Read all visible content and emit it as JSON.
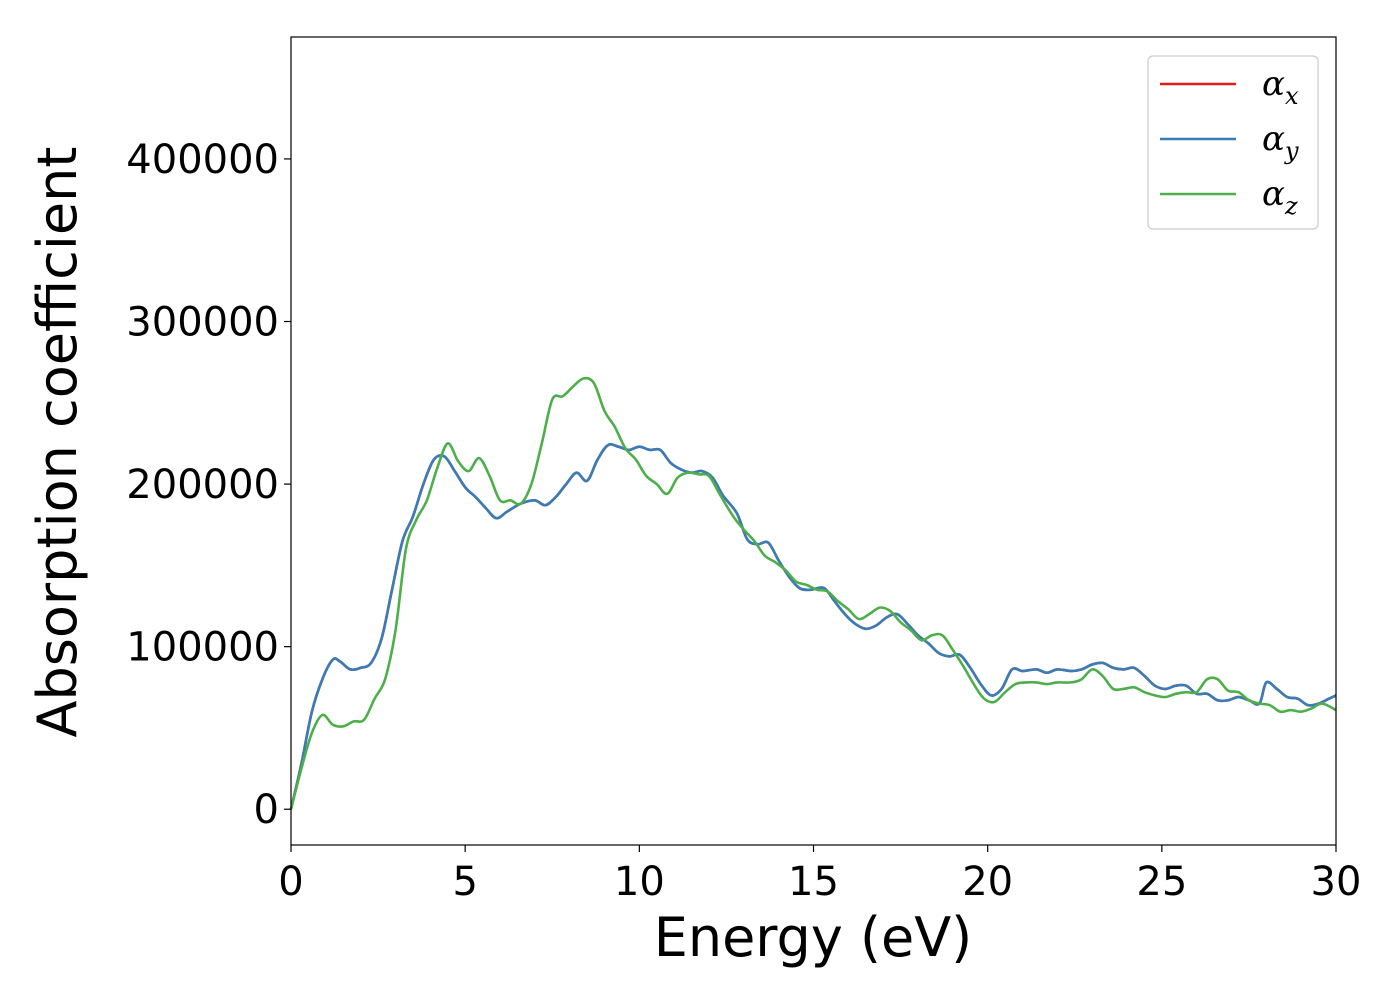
{
  "chart_data": {
    "type": "line",
    "xlabel": "Energy (eV)",
    "ylabel": "Absorption coefficient",
    "xlim": [
      0,
      30
    ],
    "ylim": [
      -22000,
      475000
    ],
    "xticks": [
      0,
      5,
      10,
      15,
      20,
      25,
      30
    ],
    "yticks": [
      0,
      100000,
      200000,
      300000,
      400000
    ],
    "grid": false,
    "legend_position": "top-right",
    "series": [
      {
        "name": "α",
        "subscript": "x",
        "color": "#e41a1c",
        "x": [
          0,
          0.3,
          0.6,
          0.9,
          1.2,
          1.4,
          1.7,
          2.0,
          2.3,
          2.6,
          2.9,
          3.2,
          3.5,
          3.8,
          4.1,
          4.4,
          4.7,
          5.0,
          5.3,
          5.6,
          5.9,
          6.2,
          6.6,
          7.0,
          7.3,
          7.6,
          7.9,
          8.2,
          8.5,
          8.8,
          9.1,
          9.4,
          9.7,
          10.0,
          10.3,
          10.6,
          10.9,
          11.2,
          11.5,
          11.8,
          12.1,
          12.4,
          12.8,
          13.1,
          13.4,
          13.7,
          14.0,
          14.3,
          14.6,
          14.9,
          15.3,
          15.6,
          15.9,
          16.2,
          16.5,
          16.8,
          17.1,
          17.4,
          17.7,
          18.0,
          18.3,
          18.6,
          18.9,
          19.2,
          19.5,
          19.8,
          20.1,
          20.4,
          20.7,
          21.0,
          21.4,
          21.7,
          22.0,
          22.4,
          22.7,
          23.0,
          23.3,
          23.6,
          23.9,
          24.2,
          24.5,
          24.8,
          25.1,
          25.4,
          25.7,
          26.0,
          26.3,
          26.6,
          26.9,
          27.2,
          27.5,
          27.8,
          28.0,
          28.3,
          28.6,
          28.9,
          29.2,
          29.5,
          29.8,
          30.0
        ],
        "y": [
          0,
          28000,
          60000,
          80000,
          92000,
          91000,
          86000,
          87000,
          90000,
          105000,
          135000,
          165000,
          180000,
          200000,
          215000,
          217000,
          208000,
          198000,
          192000,
          185000,
          179000,
          183000,
          188000,
          190000,
          187000,
          192000,
          200000,
          207000,
          202000,
          215000,
          224000,
          223000,
          221000,
          223000,
          221000,
          221000,
          213000,
          209000,
          207000,
          208000,
          204000,
          193000,
          182000,
          166000,
          163000,
          164000,
          153000,
          143000,
          136000,
          135000,
          136000,
          128000,
          120000,
          114000,
          111000,
          113000,
          118000,
          120000,
          114000,
          107000,
          102000,
          96000,
          94000,
          95000,
          87000,
          77000,
          70000,
          74000,
          86000,
          85000,
          86000,
          84000,
          86000,
          85000,
          86000,
          89000,
          90000,
          87000,
          86000,
          87000,
          82000,
          76000,
          74000,
          76000,
          76000,
          71000,
          71000,
          67000,
          67000,
          69000,
          67000,
          65000,
          78000,
          74000,
          69000,
          68000,
          64000,
          65000,
          68000,
          70000
        ]
      },
      {
        "name": "α",
        "subscript": "y",
        "color": "#377eb8",
        "x": [
          0,
          0.3,
          0.6,
          0.9,
          1.2,
          1.4,
          1.7,
          2.0,
          2.3,
          2.6,
          2.9,
          3.2,
          3.5,
          3.8,
          4.1,
          4.4,
          4.7,
          5.0,
          5.3,
          5.6,
          5.9,
          6.2,
          6.6,
          7.0,
          7.3,
          7.6,
          7.9,
          8.2,
          8.5,
          8.8,
          9.1,
          9.4,
          9.7,
          10.0,
          10.3,
          10.6,
          10.9,
          11.2,
          11.5,
          11.8,
          12.1,
          12.4,
          12.8,
          13.1,
          13.4,
          13.7,
          14.0,
          14.3,
          14.6,
          14.9,
          15.3,
          15.6,
          15.9,
          16.2,
          16.5,
          16.8,
          17.1,
          17.4,
          17.7,
          18.0,
          18.3,
          18.6,
          18.9,
          19.2,
          19.5,
          19.8,
          20.1,
          20.4,
          20.7,
          21.0,
          21.4,
          21.7,
          22.0,
          22.4,
          22.7,
          23.0,
          23.3,
          23.6,
          23.9,
          24.2,
          24.5,
          24.8,
          25.1,
          25.4,
          25.7,
          26.0,
          26.3,
          26.6,
          26.9,
          27.2,
          27.5,
          27.8,
          28.0,
          28.3,
          28.6,
          28.9,
          29.2,
          29.5,
          29.8,
          30.0
        ],
        "y": [
          0,
          28000,
          60000,
          80000,
          92000,
          91000,
          86000,
          87000,
          90000,
          105000,
          135000,
          165000,
          180000,
          200000,
          215000,
          217000,
          208000,
          198000,
          192000,
          185000,
          179000,
          183000,
          188000,
          190000,
          187000,
          192000,
          200000,
          207000,
          202000,
          215000,
          224000,
          223000,
          221000,
          223000,
          221000,
          221000,
          213000,
          209000,
          207000,
          208000,
          204000,
          193000,
          182000,
          166000,
          163000,
          164000,
          153000,
          143000,
          136000,
          135000,
          136000,
          128000,
          120000,
          114000,
          111000,
          113000,
          118000,
          120000,
          114000,
          107000,
          102000,
          96000,
          94000,
          95000,
          87000,
          77000,
          70000,
          74000,
          86000,
          85000,
          86000,
          84000,
          86000,
          85000,
          86000,
          89000,
          90000,
          87000,
          86000,
          87000,
          82000,
          76000,
          74000,
          76000,
          76000,
          71000,
          71000,
          67000,
          67000,
          69000,
          67000,
          65000,
          78000,
          74000,
          69000,
          68000,
          64000,
          65000,
          68000,
          70000
        ]
      },
      {
        "name": "α",
        "subscript": "z",
        "color": "#4daf4a",
        "x": [
          0,
          0.3,
          0.6,
          0.9,
          1.2,
          1.5,
          1.8,
          2.1,
          2.4,
          2.7,
          3.0,
          3.3,
          3.6,
          3.9,
          4.2,
          4.5,
          4.8,
          5.1,
          5.4,
          5.7,
          6.0,
          6.3,
          6.6,
          6.9,
          7.2,
          7.5,
          7.8,
          8.1,
          8.4,
          8.7,
          9.0,
          9.3,
          9.6,
          9.9,
          10.2,
          10.5,
          10.8,
          11.1,
          11.4,
          11.7,
          12.0,
          12.3,
          12.7,
          13.0,
          13.3,
          13.6,
          13.9,
          14.2,
          14.5,
          14.8,
          15.1,
          15.4,
          15.7,
          16.0,
          16.3,
          16.6,
          16.9,
          17.2,
          17.5,
          17.8,
          18.1,
          18.4,
          18.7,
          19.0,
          19.3,
          19.6,
          19.9,
          20.2,
          20.5,
          20.8,
          21.1,
          21.4,
          21.7,
          22.0,
          22.4,
          22.7,
          23.0,
          23.3,
          23.6,
          23.9,
          24.2,
          24.5,
          24.8,
          25.1,
          25.4,
          25.7,
          26.0,
          26.3,
          26.6,
          26.9,
          27.2,
          27.5,
          27.8,
          28.1,
          28.4,
          28.7,
          29.0,
          29.3,
          29.6,
          30.0
        ],
        "y": [
          0,
          25000,
          47000,
          58000,
          52000,
          51000,
          54000,
          55000,
          68000,
          80000,
          110000,
          160000,
          178000,
          190000,
          210000,
          225000,
          214000,
          208000,
          216000,
          205000,
          190000,
          190000,
          188000,
          200000,
          225000,
          252000,
          254000,
          260000,
          265000,
          262000,
          245000,
          235000,
          222000,
          215000,
          205000,
          200000,
          194000,
          204000,
          207000,
          206000,
          205000,
          194000,
          180000,
          172000,
          165000,
          156000,
          152000,
          147000,
          140000,
          138000,
          135000,
          134000,
          128000,
          123000,
          117000,
          120000,
          124000,
          122000,
          115000,
          110000,
          104000,
          107000,
          107000,
          98000,
          88000,
          77000,
          68000,
          66000,
          72000,
          77000,
          78000,
          78000,
          77000,
          78000,
          78000,
          80000,
          86000,
          82000,
          74000,
          74000,
          75000,
          72000,
          70000,
          69000,
          71000,
          72000,
          72000,
          80000,
          80000,
          73000,
          72000,
          67000,
          65000,
          64000,
          60000,
          61000,
          60000,
          62000,
          65000,
          61000
        ]
      }
    ]
  }
}
